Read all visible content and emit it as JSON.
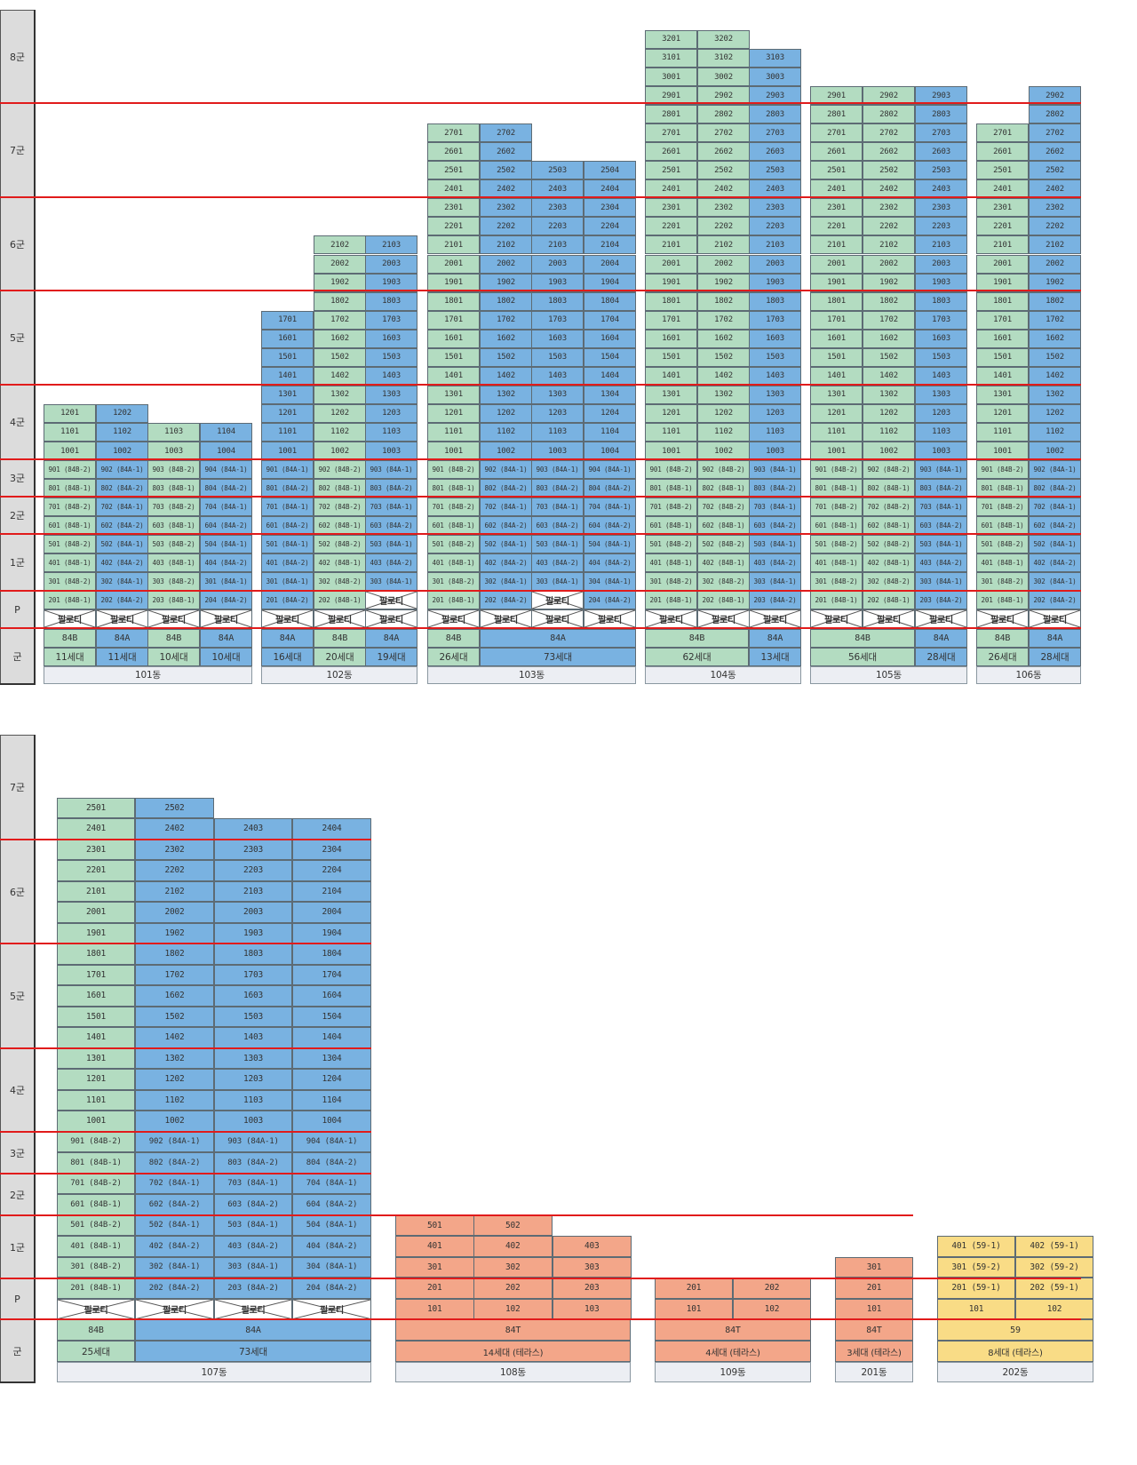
{
  "colors": {
    "84B": "#b3dcc1",
    "84A": "#79b2e1",
    "84T": "#f3a689",
    "59": "#f9dc86",
    "band_line": "#e11b1b",
    "group_label_bg": "#dcdcdc"
  },
  "piloti_label": "필로티",
  "group_labels": {
    "g8": "8군",
    "g7": "7군",
    "g6": "6군",
    "g5": "5군",
    "g4": "4군",
    "g3": "3군",
    "g2": "2군",
    "g1": "1군",
    "p": "P",
    "summary": "군"
  },
  "top_panel": {
    "buildings": [
      {
        "name": "101동",
        "units": [
          {
            "floors": [
              1201,
              1101,
              1001
            ],
            "suffix": [
              "901 (84B-2)",
              "801 (84B-1)",
              "701 (84B-2)",
              "601 (84B-1)",
              "501 (84B-2)",
              "401 (84B-1)",
              "301 (84B-2)",
              "201 (84B-1)"
            ]
          },
          {
            "floors": [
              1202,
              1102,
              1002
            ],
            "suffix": [
              "902 (84A-1)",
              "802 (84A-2)",
              "702 (84A-1)",
              "602 (84A-2)",
              "502 (84A-1)",
              "402 (84A-2)",
              "302 (84A-1)",
              "202 (84A-2)"
            ]
          },
          {
            "floors": [
              1103,
              1003
            ],
            "suffix": [
              "903 (84B-2)",
              "803 (84B-1)",
              "703 (84B-2)",
              "603 (84B-1)",
              "503 (84B-2)",
              "403 (84B-1)",
              "303 (84B-2)",
              "203 (84B-1)"
            ]
          },
          {
            "floors": [
              1104,
              1004
            ],
            "suffix": [
              "904 (84A-1)",
              "804 (84A-2)",
              "704 (84A-1)",
              "604 (84A-2)",
              "504 (84A-1)",
              "404 (84A-2)",
              "301 (84A-1)",
              "204 (84A-2)"
            ]
          }
        ],
        "types": [
          "84B",
          "84A",
          "84B",
          "84A"
        ],
        "counts": [
          "11세대",
          "11세대",
          "10세대",
          "10세대"
        ]
      },
      {
        "name": "102동",
        "units": [
          {
            "floors": [
              1701,
              1601,
              1501,
              1401,
              1301,
              1201,
              1101,
              1001
            ],
            "suffix": [
              "901 (84A-1)",
              "801 (84A-2)",
              "701 (84A-1)",
              "601 (84A-2)",
              "501 (84A-1)",
              "401 (84A-2)",
              "301 (84A-1)",
              "201 (84A-2)"
            ]
          },
          {
            "floors": [
              2102,
              2002,
              1902,
              1802,
              1702,
              1602,
              1502,
              1402,
              1302,
              1202,
              1102,
              1002
            ],
            "suffix": [
              "902 (84B-2)",
              "802 (84B-1)",
              "702 (84B-2)",
              "602 (84B-1)",
              "502 (84B-2)",
              "402 (84B-1)",
              "302 (84B-2)",
              "202 (84B-1)"
            ]
          },
          {
            "floors": [
              2103,
              2003,
              1903,
              1803,
              1703,
              1603,
              1503,
              1403,
              1303,
              1203,
              1103,
              1003
            ],
            "suffix": [
              "903 (84A-1)",
              "803 (84A-2)",
              "703 (84A-1)",
              "603 (84A-2)",
              "503 (84A-1)",
              "403 (84A-2)",
              "303 (84A-1)"
            ]
          }
        ],
        "types": [
          "84A",
          "84B",
          "84A"
        ],
        "counts": [
          "16세대",
          "20세대",
          "19세대"
        ]
      },
      {
        "name": "103동",
        "units": [
          {
            "floors": [
              2701,
              2601,
              2501,
              2401,
              2301,
              2201,
              2101,
              2001,
              1901,
              1801,
              1701,
              1601,
              1501,
              1401,
              1301,
              1201,
              1101,
              1001
            ],
            "suffix": [
              "901 (84B-2)",
              "801 (84B-1)",
              "701 (84B-2)",
              "601 (84B-1)",
              "501 (84B-2)",
              "401 (84B-1)",
              "301 (84B-2)",
              "201 (84B-1)"
            ]
          },
          {
            "floors": [
              2702,
              2602,
              2502,
              2402,
              2302,
              2202,
              2102,
              2002,
              1902,
              1802,
              1702,
              1602,
              1502,
              1402,
              1302,
              1202,
              1102,
              1002
            ],
            "suffix": [
              "902 (84A-1)",
              "802 (84A-2)",
              "702 (84A-1)",
              "602 (84A-2)",
              "502 (84A-1)",
              "402 (84A-2)",
              "302 (84A-1)",
              "202 (84A-2)"
            ]
          },
          {
            "floors": [
              2503,
              2403,
              2303,
              2203,
              2103,
              2003,
              1903,
              1803,
              1703,
              1603,
              1503,
              1403,
              1303,
              1203,
              1103,
              1003
            ],
            "suffix": [
              "903 (84A-1)",
              "803 (84A-2)",
              "703 (84A-1)",
              "603 (84A-2)",
              "503 (84A-1)",
              "403 (84A-2)",
              "303 (84A-1)"
            ]
          },
          {
            "floors": [
              2504,
              2404,
              2304,
              2204,
              2104,
              2004,
              1904,
              1804,
              1704,
              1604,
              1504,
              1404,
              1304,
              1204,
              1104,
              1004
            ],
            "suffix": [
              "904 (84A-1)",
              "804 (84A-2)",
              "704 (84A-1)",
              "604 (84A-2)",
              "504 (84A-1)",
              "404 (84A-2)",
              "304 (84A-1)",
              "204 (84A-2)"
            ]
          }
        ],
        "types": [
          "84B",
          "84A"
        ],
        "counts": [
          "26세대",
          "73세대"
        ]
      },
      {
        "name": "104동",
        "units": [
          {
            "floors": [
              3201,
              3101,
              3001,
              2901,
              2801,
              2701,
              2601,
              2501,
              2401,
              2301,
              2201,
              2101,
              2001,
              1901,
              1801,
              1701,
              1601,
              1501,
              1401,
              1301,
              1201,
              1101,
              1001
            ],
            "suffix": [
              "901 (84B-2)",
              "801 (84B-1)",
              "701 (84B-2)",
              "601 (84B-1)",
              "501 (84B-2)",
              "401 (84B-1)",
              "301 (84B-2)",
              "201 (84B-1)"
            ]
          },
          {
            "floors": [
              3202,
              3102,
              3002,
              2902,
              2802,
              2702,
              2602,
              2502,
              2402,
              2302,
              2202,
              2102,
              2002,
              1902,
              1802,
              1702,
              1602,
              1502,
              1402,
              1302,
              1202,
              1102,
              1002
            ],
            "suffix": [
              "902 (84B-2)",
              "802 (84B-1)",
              "702 (84B-2)",
              "602 (84B-1)",
              "502 (84B-2)",
              "402 (84B-1)",
              "302 (84B-2)",
              "202 (84B-1)"
            ]
          },
          {
            "floors": [
              3103,
              3003,
              2903,
              2803,
              2703,
              2603,
              2503,
              2403,
              2303,
              2203,
              2103,
              2003,
              1903,
              1803,
              1703,
              1603,
              1503,
              1403,
              1303,
              1203,
              1103,
              1003
            ],
            "suffix": [
              "903 (84A-1)",
              "803 (84A-2)",
              "703 (84A-1)",
              "603 (84A-2)",
              "503 (84A-1)",
              "403 (84A-2)",
              "303 (84A-1)",
              "203 (84A-2)"
            ]
          }
        ],
        "types": [
          "84B",
          "84A"
        ],
        "counts": [
          "62세대",
          "13세대"
        ]
      },
      {
        "name": "105동",
        "units": [
          {
            "floors": [
              2901,
              2801,
              2701,
              2601,
              2501,
              2401,
              2301,
              2201,
              2101,
              2001,
              1901,
              1801,
              1701,
              1601,
              1501,
              1401,
              1301,
              1201,
              1101,
              1001
            ],
            "suffix": [
              "901 (84B-2)",
              "801 (84B-1)",
              "701 (84B-2)",
              "601 (84B-1)",
              "501 (84B-2)",
              "401 (84B-1)",
              "301 (84B-2)",
              "201 (84B-1)"
            ]
          },
          {
            "floors": [
              2902,
              2802,
              2702,
              2602,
              2502,
              2402,
              2302,
              2202,
              2102,
              2002,
              1902,
              1802,
              1702,
              1602,
              1502,
              1402,
              1302,
              1202,
              1102,
              1002
            ],
            "suffix": [
              "902 (84B-2)",
              "802 (84B-1)",
              "702 (84B-2)",
              "602 (84B-1)",
              "502 (84B-2)",
              "402 (84B-1)",
              "302 (84B-2)",
              "202 (84B-1)"
            ]
          },
          {
            "floors": [
              2903,
              2803,
              2703,
              2603,
              2503,
              2403,
              2303,
              2203,
              2103,
              2003,
              1903,
              1803,
              1703,
              1603,
              1503,
              1403,
              1303,
              1203,
              1103,
              1003
            ],
            "suffix": [
              "903 (84A-1)",
              "803 (84A-2)",
              "703 (84A-1)",
              "603 (84A-2)",
              "503 (84A-1)",
              "403 (84A-2)",
              "303 (84A-1)",
              "203 (84A-2)"
            ]
          }
        ],
        "types": [
          "84B",
          "84A"
        ],
        "counts": [
          "56세대",
          "28세대"
        ]
      },
      {
        "name": "106동",
        "units": [
          {
            "floors": [
              2701,
              2601,
              2501,
              2401,
              2301,
              2201,
              2101,
              2001,
              1901,
              1801,
              1701,
              1601,
              1501,
              1401,
              1301,
              1201,
              1101,
              1001
            ],
            "suffix": [
              "901 (84B-2)",
              "801 (84B-1)",
              "701 (84B-2)",
              "601 (84B-1)",
              "501 (84B-2)",
              "401 (84B-1)",
              "301 (84B-2)",
              "201 (84B-1)"
            ]
          },
          {
            "floors": [
              2902,
              2802,
              2702,
              2602,
              2502,
              2402,
              2302,
              2202,
              2102,
              2002,
              1902,
              1802,
              1702,
              1602,
              1502,
              1402,
              1302,
              1202,
              1102,
              1002
            ],
            "suffix": [
              "902 (84A-1)",
              "802 (84A-2)",
              "702 (84A-1)",
              "602 (84A-2)",
              "502 (84A-1)",
              "402 (84A-2)",
              "302 (84A-1)",
              "202 (84A-2)"
            ]
          }
        ],
        "types": [
          "84B",
          "84A"
        ],
        "counts": [
          "26세대",
          "28세대"
        ]
      }
    ]
  },
  "bottom_panel": {
    "b107": {
      "name": "107동",
      "units": [
        {
          "floors": [
            2501,
            2401,
            2301,
            2201,
            2101,
            2001,
            1901,
            1801,
            1701,
            1601,
            1501,
            1401,
            1301,
            1201,
            1101,
            1001
          ],
          "suffix": [
            "901 (84B-2)",
            "801 (84B-1)",
            "701 (84B-2)",
            "601 (84B-1)",
            "501 (84B-2)",
            "401 (84B-1)",
            "301 (84B-2)",
            "201 (84B-1)"
          ]
        },
        {
          "floors": [
            2502,
            2402,
            2302,
            2202,
            2102,
            2002,
            1902,
            1802,
            1702,
            1602,
            1502,
            1402,
            1302,
            1202,
            1102,
            1002
          ],
          "suffix": [
            "902 (84A-1)",
            "802 (84A-2)",
            "702 (84A-1)",
            "602 (84A-2)",
            "502 (84A-1)",
            "402 (84A-2)",
            "302 (84A-1)",
            "202 (84A-2)"
          ]
        },
        {
          "floors": [
            2403,
            2303,
            2203,
            2103,
            2003,
            1903,
            1803,
            1703,
            1603,
            1503,
            1403,
            1303,
            1203,
            1103,
            1003
          ],
          "suffix": [
            "903 (84A-1)",
            "803 (84A-2)",
            "703 (84A-1)",
            "603 (84A-2)",
            "503 (84A-1)",
            "403 (84A-2)",
            "303 (84A-1)",
            "203 (84A-2)"
          ]
        },
        {
          "floors": [
            2404,
            2304,
            2204,
            2104,
            2004,
            1904,
            1804,
            1704,
            1604,
            1504,
            1404,
            1304,
            1204,
            1104,
            1004
          ],
          "suffix": [
            "904 (84A-1)",
            "804 (84A-2)",
            "704 (84A-1)",
            "604 (84A-2)",
            "504 (84A-1)",
            "404 (84A-2)",
            "304 (84A-1)",
            "204 (84A-2)"
          ]
        }
      ],
      "types": [
        "84B",
        "84A"
      ],
      "counts": [
        "25세대",
        "73세대"
      ]
    },
    "b108": {
      "name": "108동",
      "units": [
        [
          501,
          401,
          301,
          201,
          101
        ],
        [
          502,
          402,
          302,
          202,
          102
        ],
        [
          403,
          303,
          203,
          103
        ]
      ],
      "type": "84T",
      "count": "14세대 (테라스)"
    },
    "b109": {
      "name": "109동",
      "units": [
        [
          201,
          101
        ],
        [
          202,
          102
        ]
      ],
      "type": "84T",
      "count": "4세대 (테라스)"
    },
    "b201": {
      "name": "201동",
      "units": [
        [
          301,
          201,
          101
        ]
      ],
      "type": "84T",
      "count": "3세대 (테라스)"
    },
    "b202": {
      "name": "202동",
      "units": [
        [
          "401 (59-1)",
          "301 (59-2)",
          "201 (59-1)",
          "101"
        ],
        [
          "402 (59-1)",
          "302 (59-2)",
          "202 (59-1)",
          "102"
        ]
      ],
      "type": "59",
      "count": "8세대 (테라스)"
    }
  }
}
